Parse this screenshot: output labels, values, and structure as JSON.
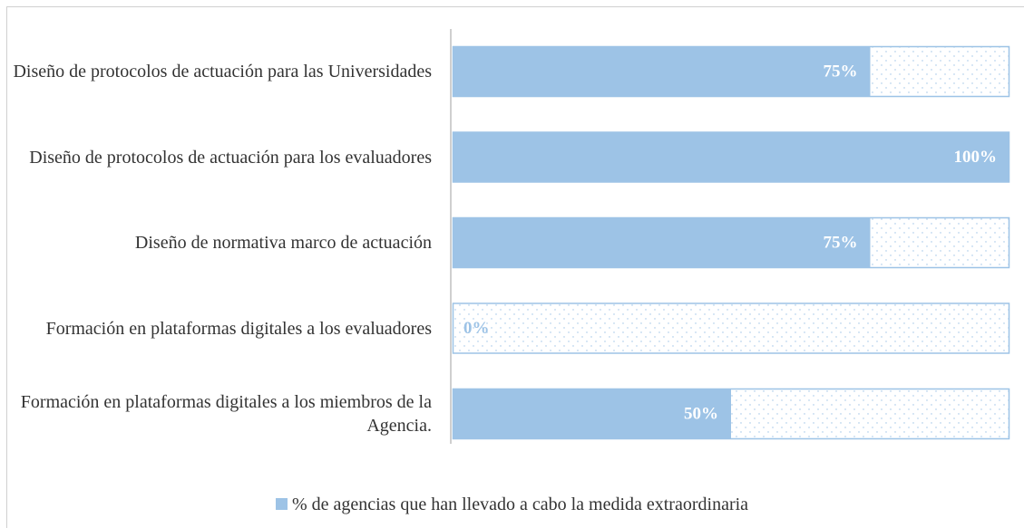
{
  "chart_data": {
    "type": "hbar",
    "categories": [
      "Diseño de protocolos de actuación para las Universidades",
      "Diseño de protocolos de actuación para los evaluadores",
      "Diseño de normativa marco de actuación",
      "Formación en plataformas digitales  a los evaluadores",
      "Formación en plataformas digitales  a los miembros de la Agencia."
    ],
    "series": [
      {
        "name": "% de agencias que han llevado a cabo la medida extraordinaria",
        "color": "#9dc3e6",
        "values": [
          75,
          100,
          75,
          0,
          50
        ],
        "value_labels": [
          "75%",
          "100%",
          "75%",
          "0%",
          "50%"
        ]
      }
    ],
    "xlim": [
      0,
      100
    ],
    "legend": "bottom"
  }
}
